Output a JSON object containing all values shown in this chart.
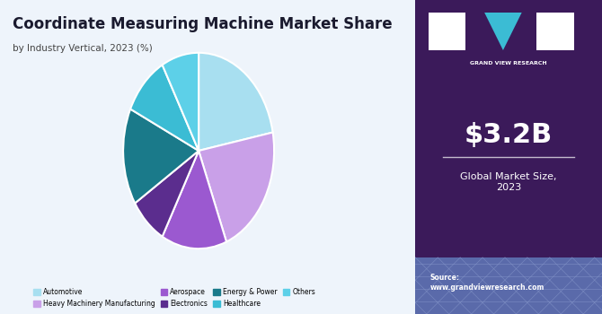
{
  "title": "Coordinate Measuring Machine Market Share",
  "subtitle": "by Industry Vertical, 2023 (%)",
  "slices": [
    {
      "label": "Automotive",
      "value": 22,
      "color": "#a8dff0"
    },
    {
      "label": "Heavy Machinery Manufacturing",
      "value": 22,
      "color": "#c9a0e8"
    },
    {
      "label": "Aerospace",
      "value": 14,
      "color": "#9b59d0"
    },
    {
      "label": "Electronics",
      "value": 8,
      "color": "#5b2d8e"
    },
    {
      "label": "Energy & Power",
      "value": 16,
      "color": "#1a7a8a"
    },
    {
      "label": "Healthcare",
      "value": 10,
      "color": "#3bbcd4"
    },
    {
      "label": "Others",
      "value": 8,
      "color": "#5dd0e8"
    }
  ],
  "market_size": "$3.2B",
  "market_label": "Global Market Size,\n2023",
  "source_text": "Source:\nwww.grandviewresearch.com",
  "right_panel_color": "#3b1a5a",
  "right_panel_bottom_color": "#5a6aaa",
  "background_color": "#eef4fb",
  "title_color": "#1a1a2e",
  "legend_colors": [
    "#a8dff0",
    "#c9a0e8",
    "#9b59d0",
    "#5b2d8e",
    "#1a7a8a",
    "#3bbcd4",
    "#5dd0e8"
  ],
  "legend_labels": [
    "Automotive",
    "Heavy Machinery Manufacturing",
    "Aerospace",
    "Electronics",
    "Energy & Power",
    "Healthcare",
    "Others"
  ]
}
